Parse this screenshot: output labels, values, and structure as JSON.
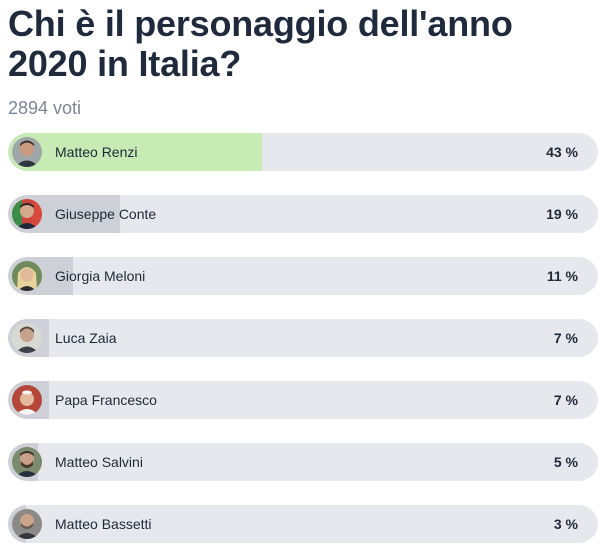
{
  "poll": {
    "title": "Chi è il personaggio dell'anno 2020 in Italia?",
    "votes": "2894 voti"
  },
  "colors": {
    "track": "#e6e8ee",
    "fill": "#cdd0d7",
    "winner_fill": "#c8eab4"
  },
  "options": [
    {
      "name": "Matteo Renzi",
      "percent_label": "43 %",
      "percent": 43,
      "winner": true,
      "icon": "avatar-matteo-renzi-icon"
    },
    {
      "name": "Giuseppe Conte",
      "percent_label": "19 %",
      "percent": 19,
      "winner": false,
      "icon": "avatar-giuseppe-conte-icon"
    },
    {
      "name": "Giorgia Meloni",
      "percent_label": "11 %",
      "percent": 11,
      "winner": false,
      "icon": "avatar-giorgia-meloni-icon"
    },
    {
      "name": "Luca Zaia",
      "percent_label": "7 %",
      "percent": 7,
      "winner": false,
      "icon": "avatar-luca-zaia-icon"
    },
    {
      "name": "Papa Francesco",
      "percent_label": "7 %",
      "percent": 7,
      "winner": false,
      "icon": "avatar-papa-francesco-icon"
    },
    {
      "name": "Matteo Salvini",
      "percent_label": "5 %",
      "percent": 5,
      "winner": false,
      "icon": "avatar-matteo-salvini-icon"
    },
    {
      "name": "Matteo Bassetti",
      "percent_label": "3 %",
      "percent": 3,
      "winner": false,
      "icon": "avatar-matteo-bassetti-icon"
    }
  ]
}
